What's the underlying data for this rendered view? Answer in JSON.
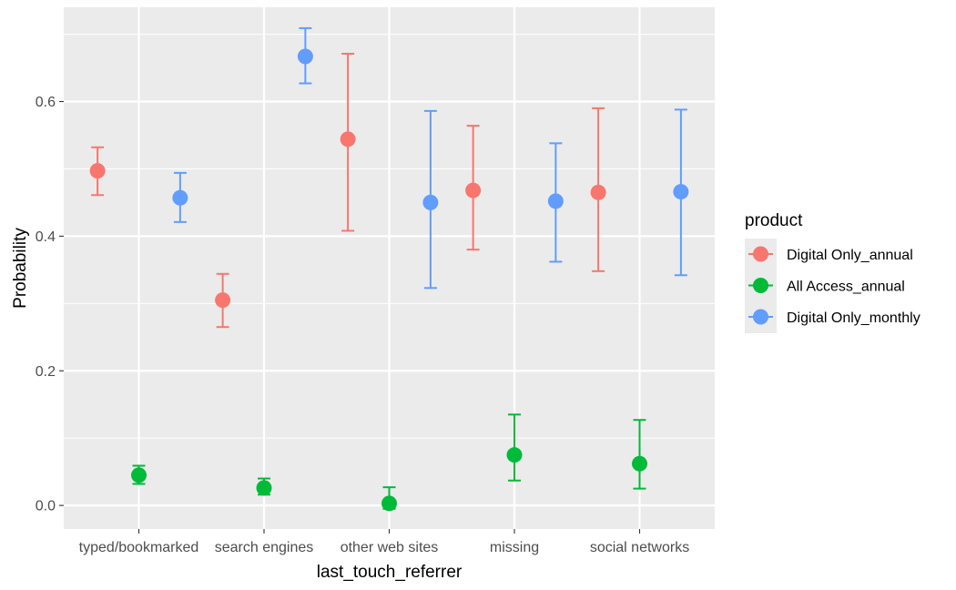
{
  "chart_data": {
    "type": "scatter",
    "xlabel": "last_touch_referrer",
    "ylabel": "Probability",
    "categories": [
      "typed/bookmarked",
      "search engines",
      "other web sites",
      "missing",
      "social networks"
    ],
    "ylim": [
      -0.035,
      0.74
    ],
    "yticks": [
      0.0,
      0.2,
      0.4,
      0.6
    ],
    "ytick_labels": [
      "0.0",
      "0.2",
      "0.4",
      "0.6"
    ],
    "grid": true,
    "legend": {
      "title": "product",
      "position": "right"
    },
    "series": [
      {
        "name": "Digital Only_annual",
        "color": "#F8766D",
        "values": [
          0.497,
          0.305,
          0.544,
          0.468,
          0.465
        ],
        "lower": [
          0.461,
          0.265,
          0.408,
          0.38,
          0.348
        ],
        "upper": [
          0.532,
          0.344,
          0.671,
          0.564,
          0.59
        ]
      },
      {
        "name": "All Access_annual",
        "color": "#00BA38",
        "values": [
          0.045,
          0.026,
          0.003,
          0.075,
          0.062
        ],
        "lower": [
          0.032,
          0.016,
          -0.005,
          0.037,
          0.025
        ],
        "upper": [
          0.059,
          0.04,
          0.027,
          0.135,
          0.127
        ]
      },
      {
        "name": "Digital Only_monthly",
        "color": "#619CFF",
        "values": [
          0.457,
          0.667,
          0.45,
          0.452,
          0.466
        ],
        "lower": [
          0.421,
          0.627,
          0.323,
          0.362,
          0.342
        ],
        "upper": [
          0.494,
          0.709,
          0.586,
          0.538,
          0.588
        ]
      }
    ]
  }
}
